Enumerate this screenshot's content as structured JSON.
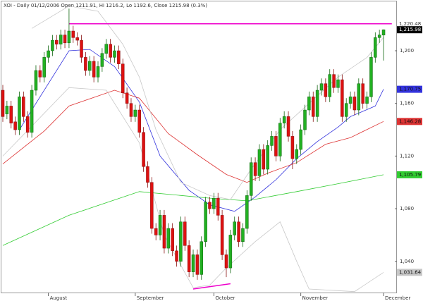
{
  "chart_data": {
    "type": "candlestick",
    "title": "XOI - Daily 01/12/2006 Open 1211.91, Hi 1216.2, Lo 1192.6, Close 1215.98 (0.3%)",
    "categories": [
      null,
      null,
      null,
      null,
      null,
      null,
      null,
      null,
      null,
      null,
      null,
      "August",
      null,
      null,
      null,
      null,
      null,
      null,
      null,
      null,
      null,
      null,
      null,
      null,
      null,
      null,
      null,
      null,
      null,
      null,
      null,
      null,
      "September",
      null,
      null,
      null,
      null,
      null,
      null,
      null,
      null,
      null,
      null,
      null,
      null,
      null,
      null,
      null,
      null,
      null,
      null,
      "October",
      null,
      null,
      null,
      null,
      null,
      null,
      null,
      null,
      null,
      null,
      null,
      null,
      null,
      null,
      null,
      null,
      null,
      null,
      null,
      null,
      "November",
      null,
      null,
      null,
      null,
      null,
      null,
      null,
      null,
      null,
      null,
      null,
      null,
      null,
      null,
      null,
      null,
      null,
      null,
      null,
      "December"
    ],
    "open": [
      1170,
      1152,
      1158,
      1146,
      1140,
      1165,
      1150,
      1138,
      1170,
      1185,
      1180,
      1195,
      1200,
      1208,
      1205,
      1212,
      1206,
      1215,
      1210,
      1208,
      1195,
      1185,
      1192,
      1180,
      1188,
      1198,
      1205,
      1195,
      1200,
      1190,
      1168,
      1160,
      1150,
      1155,
      1138,
      1112,
      1100,
      1065,
      1060,
      1075,
      1050,
      1065,
      1048,
      1040,
      1070,
      1052,
      1032,
      1045,
      1030,
      1055,
      1085,
      1080,
      1088,
      1075,
      1045,
      1035,
      1060,
      1070,
      1055,
      1065,
      1090,
      1115,
      1105,
      1125,
      1110,
      1128,
      1135,
      1120,
      1145,
      1150,
      1135,
      1118,
      1125,
      1140,
      1155,
      1165,
      1150,
      1170,
      1175,
      1165,
      1182,
      1172,
      1178,
      1150,
      1160,
      1165,
      1155,
      1175,
      1160,
      1165,
      1195,
      1210,
      1211.91
    ],
    "high": [
      1174,
      1162,
      1162,
      1150,
      1169,
      1169,
      1154,
      1174,
      1189,
      1189,
      1199,
      1204,
      1212,
      1212,
      1216,
      1216,
      1232,
      1219,
      1214,
      1212,
      1199,
      1196,
      1196,
      1192,
      1202,
      1209,
      1209,
      1204,
      1204,
      1194,
      1172,
      1164,
      1159,
      1159,
      1142,
      1116,
      1104,
      1069,
      1079,
      1079,
      1069,
      1069,
      1052,
      1074,
      1074,
      1056,
      1049,
      1049,
      1059,
      1089,
      1089,
      1092,
      1092,
      1079,
      1049,
      1064,
      1074,
      1074,
      1069,
      1094,
      1119,
      1119,
      1129,
      1129,
      1132,
      1139,
      1139,
      1149,
      1154,
      1154,
      1139,
      1129,
      1144,
      1159,
      1169,
      1169,
      1174,
      1179,
      1179,
      1186,
      1186,
      1182,
      1182,
      1164,
      1169,
      1169,
      1179,
      1179,
      1169,
      1199,
      1214,
      1216,
      1216.2
    ],
    "low": [
      1146,
      1148,
      1141,
      1136,
      1136,
      1146,
      1134,
      1134,
      1166,
      1176,
      1176,
      1191,
      1196,
      1201,
      1201,
      1202,
      1202,
      1206,
      1204,
      1191,
      1181,
      1181,
      1176,
      1176,
      1184,
      1194,
      1191,
      1191,
      1186,
      1164,
      1156,
      1146,
      1146,
      1134,
      1108,
      1096,
      1061,
      1056,
      1056,
      1046,
      1046,
      1044,
      1036,
      1036,
      1048,
      1028,
      1028,
      1026,
      1026,
      1051,
      1076,
      1076,
      1071,
      1041,
      1028,
      1031,
      1056,
      1051,
      1051,
      1061,
      1086,
      1101,
      1101,
      1106,
      1106,
      1124,
      1116,
      1116,
      1141,
      1131,
      1110,
      1114,
      1121,
      1136,
      1151,
      1146,
      1146,
      1166,
      1161,
      1161,
      1168,
      1168,
      1146,
      1146,
      1156,
      1151,
      1151,
      1156,
      1156,
      1161,
      1191,
      1206,
      1192.6
    ],
    "close": [
      1150,
      1158,
      1145,
      1140,
      1165,
      1150,
      1138,
      1170,
      1185,
      1180,
      1195,
      1200,
      1208,
      1205,
      1212,
      1206,
      1215,
      1210,
      1208,
      1195,
      1185,
      1192,
      1180,
      1188,
      1198,
      1205,
      1195,
      1200,
      1190,
      1168,
      1160,
      1150,
      1155,
      1138,
      1112,
      1100,
      1065,
      1060,
      1075,
      1050,
      1065,
      1048,
      1040,
      1070,
      1052,
      1032,
      1045,
      1030,
      1055,
      1085,
      1080,
      1088,
      1075,
      1045,
      1035,
      1060,
      1070,
      1055,
      1065,
      1090,
      1115,
      1105,
      1125,
      1110,
      1128,
      1135,
      1120,
      1145,
      1150,
      1135,
      1118,
      1125,
      1140,
      1155,
      1165,
      1150,
      1170,
      1175,
      1165,
      1182,
      1172,
      1178,
      1150,
      1160,
      1165,
      1155,
      1175,
      1160,
      1165,
      1195,
      1210,
      1212,
      1215.98
    ],
    "close_label": "1,215.98",
    "up_color": "#22b022",
    "down_color": "#dd1111",
    "ylim": [
      1016.3,
      1237.5
    ],
    "yticks": [
      {
        "value": 1040,
        "label": "1,040"
      },
      {
        "value": 1080,
        "label": "1,080"
      },
      {
        "value": 1120,
        "label": "1,120"
      },
      {
        "value": 1160,
        "label": "1,160"
      },
      {
        "value": 1200,
        "label": "1,200"
      }
    ],
    "overlays": [
      {
        "color": "#3333dd",
        "x": [
          4,
          6,
          16,
          21,
          27,
          33,
          38,
          45,
          50,
          56,
          61,
          66,
          71,
          76,
          81,
          84,
          90,
          92
        ],
        "values": [
          1140,
          1150,
          1200,
          1201,
          1188,
          1161,
          1120,
          1094,
          1083,
          1078,
          1089,
          1102,
          1118,
          1131,
          1142,
          1150,
          1158,
          1170.75
        ],
        "end_label": "1,170.75"
      },
      {
        "color": "#dd3333",
        "x": [
          0,
          10,
          16,
          27,
          33,
          40,
          47,
          54,
          59,
          64,
          71,
          78,
          84,
          92
        ],
        "values": [
          1114,
          1139,
          1158,
          1170,
          1164,
          1137,
          1121,
          1106,
          1100,
          1107,
          1115,
          1129,
          1134,
          1146.28
        ],
        "end_label": "1,146.28"
      },
      {
        "color": "#33cc33",
        "x": [
          0,
          16,
          33,
          50,
          59,
          71,
          81,
          92
        ],
        "values": [
          1052,
          1075,
          1093,
          1088,
          1086,
          1093,
          1099,
          1105.79
        ],
        "end_label": "1,105.79"
      },
      {
        "color": "#c8c8c8",
        "x": [
          7,
          16,
          23,
          29,
          33,
          37,
          43,
          50,
          55,
          60,
          67,
          74,
          81,
          88,
          92
        ],
        "values": [
          1217,
          1234,
          1230,
          1205,
          1180,
          1140,
          1100,
          1090,
          1087,
          1110,
          1140,
          1160,
          1180,
          1195,
          1210
        ]
      },
      {
        "color": "#c8c8c8",
        "x": [
          0,
          16,
          25,
          33,
          39,
          46,
          50,
          54,
          61,
          67,
          71,
          74,
          85,
          92
        ],
        "values": [
          1120,
          1172,
          1170,
          1130,
          1060,
          1020,
          1022,
          1035,
          1055,
          1070,
          1040,
          1019,
          1017,
          1031.64
        ],
        "end_label": "1,031.64"
      }
    ],
    "trendlines": [
      {
        "color": "#ee00cc",
        "x": [
          16,
          94
        ],
        "values": [
          1220.48,
          1220.48
        ],
        "end_label": "1,220.48"
      },
      {
        "color": "#ee00cc",
        "x": [
          46,
          55
        ],
        "values": [
          1019,
          1023
        ]
      }
    ]
  }
}
